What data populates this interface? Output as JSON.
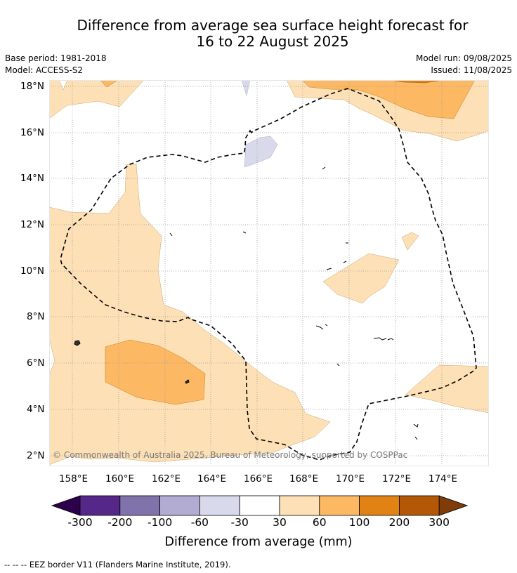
{
  "title": {
    "line1": "Difference from average sea surface height forecast for",
    "line2": "16 to 22 August 2025"
  },
  "meta": {
    "base_period": "Base period: 1981-2018",
    "model": "Model: ACCESS-S2",
    "model_run": "Model run: 09/08/2025",
    "issued": "Issued: 11/08/2025"
  },
  "map": {
    "lat_labels": [
      "18°N",
      "16°N",
      "14°N",
      "12°N",
      "10°N",
      "8°N",
      "6°N",
      "4°N",
      "2°N"
    ],
    "lon_labels": [
      "158°E",
      "160°E",
      "162°E",
      "164°E",
      "166°E",
      "168°E",
      "170°E",
      "172°E",
      "174°E"
    ],
    "copyright": "© Commonwealth of Australia 2025, Bureau of Meteorology, supported by COSPPac"
  },
  "colorbar": {
    "ticks": [
      "-300",
      "-200",
      "-100",
      "-60",
      "-30",
      "30",
      "60",
      "100",
      "200",
      "300"
    ],
    "colors": [
      "#2d004b",
      "#542788",
      "#8073ac",
      "#b2abd2",
      "#d8daeb",
      "#ffffff",
      "#fee0b6",
      "#fdb863",
      "#e08214",
      "#b35806",
      "#7f3b08"
    ],
    "title": "Difference from average (mm)"
  },
  "footnote": "-- -- -- EEZ border V11 (Flanders Marine Institute, 2019)."
}
